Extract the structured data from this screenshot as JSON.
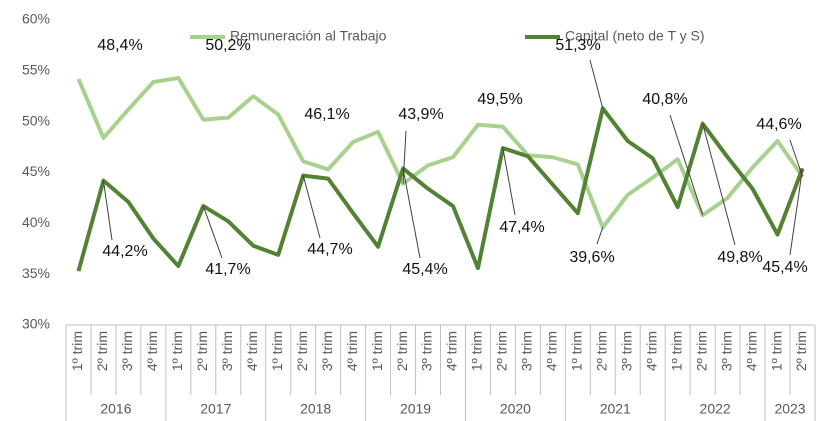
{
  "chart_data": {
    "type": "line",
    "groups": [
      {
        "label": "2016",
        "categories": [
          "1º trim",
          "2º trim",
          "3º trim",
          "4º trim"
        ]
      },
      {
        "label": "2017",
        "categories": [
          "1º trim",
          "2º trim",
          "3º trim",
          "4º trim"
        ]
      },
      {
        "label": "2018",
        "categories": [
          "1º trim",
          "2º trim",
          "3º trim",
          "4º trim"
        ]
      },
      {
        "label": "2019",
        "categories": [
          "1º trim",
          "2º trim",
          "3º trim",
          "4º trim"
        ]
      },
      {
        "label": "2020",
        "categories": [
          "1º trim",
          "2º trim",
          "3º trim",
          "4º trim"
        ]
      },
      {
        "label": "2021",
        "categories": [
          "1º trim",
          "2º trim",
          "3º trim",
          "4º trim"
        ]
      },
      {
        "label": "2022",
        "categories": [
          "1º trim",
          "2º trim",
          "3º trim",
          "4º trim"
        ]
      },
      {
        "label": "2023",
        "categories": [
          "1º trim",
          "2º trim"
        ]
      }
    ],
    "series": [
      {
        "name": "Remuneración al Trabajo",
        "color": "#a9d18e",
        "values": [
          54.2,
          48.4,
          51.2,
          53.9,
          54.3,
          50.2,
          50.4,
          52.5,
          50.7,
          46.1,
          45.3,
          48.0,
          49.0,
          43.9,
          45.7,
          46.5,
          49.7,
          49.5,
          46.7,
          46.5,
          45.8,
          39.6,
          42.8,
          44.5,
          46.3,
          40.8,
          42.5,
          45.5,
          48.1,
          44.6
        ],
        "value_labels": [
          null,
          "48,4%",
          null,
          null,
          null,
          "50,2%",
          null,
          null,
          null,
          "46,1%",
          null,
          null,
          null,
          "43,9%",
          null,
          null,
          null,
          "49,5%",
          null,
          null,
          null,
          "39,6%",
          null,
          null,
          null,
          "40,8%",
          null,
          null,
          null,
          "44,6%"
        ]
      },
      {
        "name": "Capital (neto de T y S)",
        "color": "#548235",
        "values": [
          35.3,
          44.2,
          42.1,
          38.5,
          35.8,
          41.7,
          40.2,
          37.8,
          36.9,
          44.7,
          44.4,
          41.0,
          37.7,
          45.4,
          43.4,
          41.7,
          35.6,
          47.4,
          46.6,
          43.8,
          41.0,
          51.3,
          48.1,
          46.4,
          41.6,
          49.8,
          46.5,
          43.4,
          38.9,
          45.4
        ],
        "value_labels": [
          null,
          "44,2%",
          null,
          null,
          null,
          "41,7%",
          null,
          null,
          null,
          "44,7%",
          null,
          null,
          null,
          "45,4%",
          null,
          null,
          null,
          "47,4%",
          null,
          null,
          null,
          "51,3%",
          null,
          null,
          null,
          "49,8%",
          null,
          null,
          null,
          "45,4%"
        ]
      }
    ],
    "ylim": [
      30,
      60
    ],
    "yticks": [
      {
        "value": 30,
        "label": "30%"
      },
      {
        "value": 35,
        "label": "35%"
      },
      {
        "value": 40,
        "label": "40%"
      },
      {
        "value": 45,
        "label": "45%"
      },
      {
        "value": 50,
        "label": "50%"
      },
      {
        "value": 55,
        "label": "55%"
      },
      {
        "value": 60,
        "label": "60%"
      }
    ],
    "grid": false,
    "legend": "top"
  }
}
